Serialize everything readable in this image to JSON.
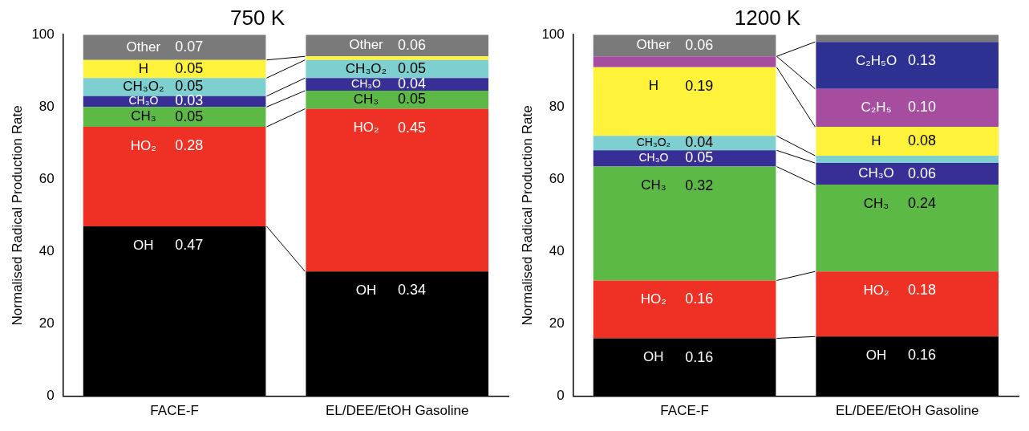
{
  "chart_data": [
    {
      "type": "bar",
      "title": "750 K",
      "ylabel": "Normalised Radical Production Rate",
      "categories": [
        "FACE-F",
        "EL/DEE/EtOH Gasoline"
      ],
      "stacked": true,
      "ylim": [
        0,
        100
      ],
      "yticks": [
        0,
        20,
        40,
        60,
        80,
        100
      ],
      "grid": false,
      "legend": false,
      "series": [
        {
          "name": "OH",
          "color": "#000000",
          "values": [
            47,
            34.5
          ]
        },
        {
          "name": "HO₂",
          "color": "#ee3124",
          "values": [
            27.5,
            45
          ]
        },
        {
          "name": "CH₃",
          "color": "#5cb946",
          "values": [
            5.5,
            5
          ]
        },
        {
          "name": "CH₃O",
          "color": "#372f96",
          "values": [
            3,
            3.5
          ]
        },
        {
          "name": "CH₃O₂",
          "color": "#7ecfcf",
          "values": [
            5,
            5
          ]
        },
        {
          "name": "H",
          "color": "#fff23a",
          "values": [
            5,
            1
          ]
        },
        {
          "name": "Other",
          "color": "#7a7a7a",
          "values": [
            7,
            6
          ]
        }
      ],
      "annotations": [
        {
          "text": "0.47",
          "x": "FACE-F",
          "y": 47
        },
        {
          "text": "0.28",
          "x": "FACE-F",
          "y": 74.5
        },
        {
          "text": "0.05",
          "x": "FACE-F",
          "y": 80
        },
        {
          "text": "0.03",
          "x": "FACE-F",
          "y": 83
        },
        {
          "text": "0.05",
          "x": "FACE-F",
          "y": 88
        },
        {
          "text": "0.05",
          "x": "FACE-F",
          "y": 93
        },
        {
          "text": "0.07",
          "x": "FACE-F",
          "y": 100
        },
        {
          "text": "0.34",
          "x": "EL/DEE/EtOH Gasoline",
          "y": 34.5
        },
        {
          "text": "0.45",
          "x": "EL/DEE/EtOH Gasoline",
          "y": 79.5
        },
        {
          "text": "0.05",
          "x": "EL/DEE/EtOH Gasoline",
          "y": 84.5
        },
        {
          "text": "0.04",
          "x": "EL/DEE/EtOH Gasoline",
          "y": 88
        },
        {
          "text": "0.05",
          "x": "EL/DEE/EtOH Gasoline",
          "y": 93
        },
        {
          "text": "0.06",
          "x": "EL/DEE/EtOH Gasoline",
          "y": 100
        }
      ]
    },
    {
      "type": "bar",
      "title": "1200 K",
      "ylabel": "Normalised Radical Production Rate",
      "categories": [
        "FACE-F",
        "EL/DEE/EtOH Gasoline"
      ],
      "stacked": true,
      "ylim": [
        0,
        100
      ],
      "yticks": [
        0,
        20,
        40,
        60,
        80,
        100
      ],
      "grid": false,
      "legend": false,
      "series": [
        {
          "name": "OH",
          "color": "#000000",
          "values": [
            16,
            16.5
          ]
        },
        {
          "name": "HO₂",
          "color": "#ee3124",
          "values": [
            16,
            18
          ]
        },
        {
          "name": "CH₃",
          "color": "#5cb946",
          "values": [
            31.5,
            24
          ]
        },
        {
          "name": "CH₃O",
          "color": "#372f96",
          "values": [
            4.5,
            6
          ]
        },
        {
          "name": "CH₃O₂",
          "color": "#7ecfcf",
          "values": [
            4,
            2
          ]
        },
        {
          "name": "H",
          "color": "#fff23a",
          "values": [
            19,
            8
          ]
        },
        {
          "name": "C₂H₅",
          "color": "#a64d9f",
          "values": [
            3,
            10.5
          ]
        },
        {
          "name": "C₂H₅O",
          "color": "#2e3192",
          "values": [
            0,
            13
          ]
        },
        {
          "name": "Other",
          "color": "#7a7a7a",
          "values": [
            6,
            2
          ]
        }
      ],
      "annotations": [
        {
          "text": "0.16",
          "x": "FACE-F",
          "y": 16
        },
        {
          "text": "0.16",
          "x": "FACE-F",
          "y": 32
        },
        {
          "text": "0.32",
          "x": "FACE-F",
          "y": 63.5
        },
        {
          "text": "0.05",
          "x": "FACE-F",
          "y": 68
        },
        {
          "text": "0.04",
          "x": "FACE-F",
          "y": 72
        },
        {
          "text": "0.19",
          "x": "FACE-F",
          "y": 91
        },
        {
          "text": "0.06",
          "x": "FACE-F",
          "y": 100
        },
        {
          "text": "0.16",
          "x": "EL/DEE/EtOH Gasoline",
          "y": 16.5
        },
        {
          "text": "0.18",
          "x": "EL/DEE/EtOH Gasoline",
          "y": 34.5
        },
        {
          "text": "0.24",
          "x": "EL/DEE/EtOH Gasoline",
          "y": 58.5
        },
        {
          "text": "0.06",
          "x": "EL/DEE/EtOH Gasoline",
          "y": 64.5
        },
        {
          "text": "0.08",
          "x": "EL/DEE/EtOH Gasoline",
          "y": 74.5
        },
        {
          "text": "0.10",
          "x": "EL/DEE/EtOH Gasoline",
          "y": 85
        },
        {
          "text": "0.13",
          "x": "EL/DEE/EtOH Gasoline",
          "y": 98
        }
      ]
    }
  ]
}
